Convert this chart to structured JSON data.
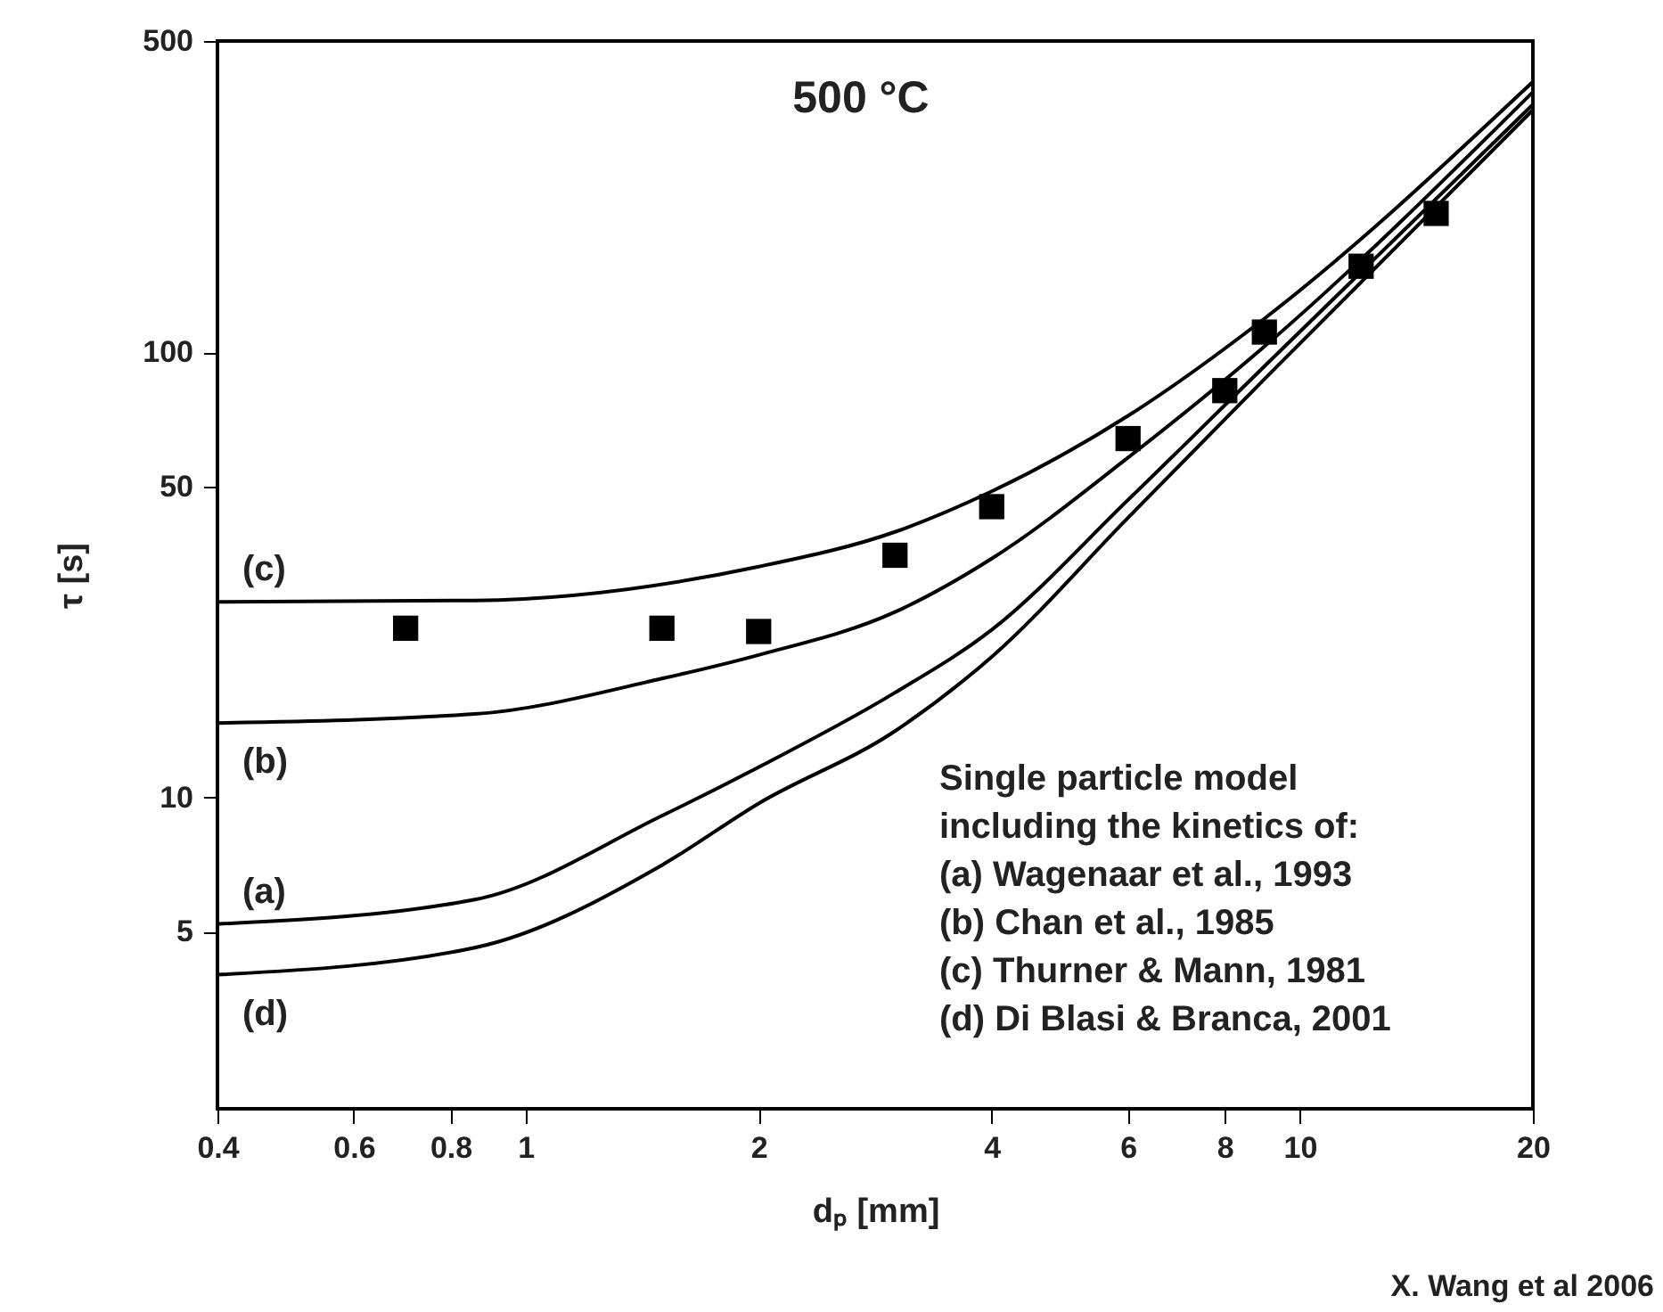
{
  "chart_data": {
    "type": "line",
    "title": "500 °C",
    "xlabel": "dₚ [mm]",
    "ylabel": "τ [s]",
    "log": "xy",
    "xlim": [
      0.4,
      20
    ],
    "ylim": [
      2,
      500
    ],
    "xticks": [
      0.4,
      0.6,
      0.8,
      1,
      2,
      4,
      6,
      8,
      10,
      20
    ],
    "yticks": [
      5,
      10,
      50,
      100,
      500
    ],
    "grid": false,
    "line_style": "solid",
    "series": [
      {
        "color": "#000000",
        "x": [
          0.4,
          0.86,
          2,
          3,
          4,
          6,
          9,
          20
        ],
        "values": [
          27.5,
          27.7,
          33,
          39.5,
          48.7,
          72,
          119,
          405
        ]
      },
      {
        "color": "#000000",
        "x": [
          0.4,
          0.86,
          1.5,
          2,
          3,
          4,
          6,
          9,
          20
        ],
        "values": [
          14.7,
          15.4,
          18.5,
          20.9,
          26.1,
          34.4,
          58,
          103,
          384
        ]
      },
      {
        "color": "#000000",
        "x": [
          0.4,
          0.86,
          1.5,
          2,
          3,
          4,
          6,
          9,
          20
        ],
        "values": [
          5.2,
          5.9,
          9.1,
          11.7,
          17.2,
          23.8,
          46.6,
          93,
          360
        ]
      },
      {
        "color": "#000000",
        "x": [
          0.4,
          0.86,
          1.5,
          2,
          3,
          4,
          6,
          9,
          20
        ],
        "values": [
          4.0,
          4.6,
          7.05,
          9.7,
          14.1,
          20.7,
          42.5,
          87,
          350
        ]
      },
      {
        "type": "scatter",
        "marker": "square",
        "color": "#000000",
        "x": [
          0.7,
          1.5,
          2,
          3,
          4,
          6,
          8,
          9,
          12,
          15
        ],
        "values": [
          24,
          24,
          23.6,
          35,
          45,
          64,
          82,
          111,
          156,
          205
        ]
      }
    ],
    "annotations": [
      "(c)",
      "(b)",
      "(a)",
      "(d)",
      "Single particle model",
      "including the kinetics of:",
      "(a) Wagenaar et al., 1993",
      "(b) Chan et al., 1985",
      "(c) Thurner & Mann, 1981",
      "(d) Di Blasi & Branca, 2001",
      "X. Wang et al 2006"
    ]
  }
}
